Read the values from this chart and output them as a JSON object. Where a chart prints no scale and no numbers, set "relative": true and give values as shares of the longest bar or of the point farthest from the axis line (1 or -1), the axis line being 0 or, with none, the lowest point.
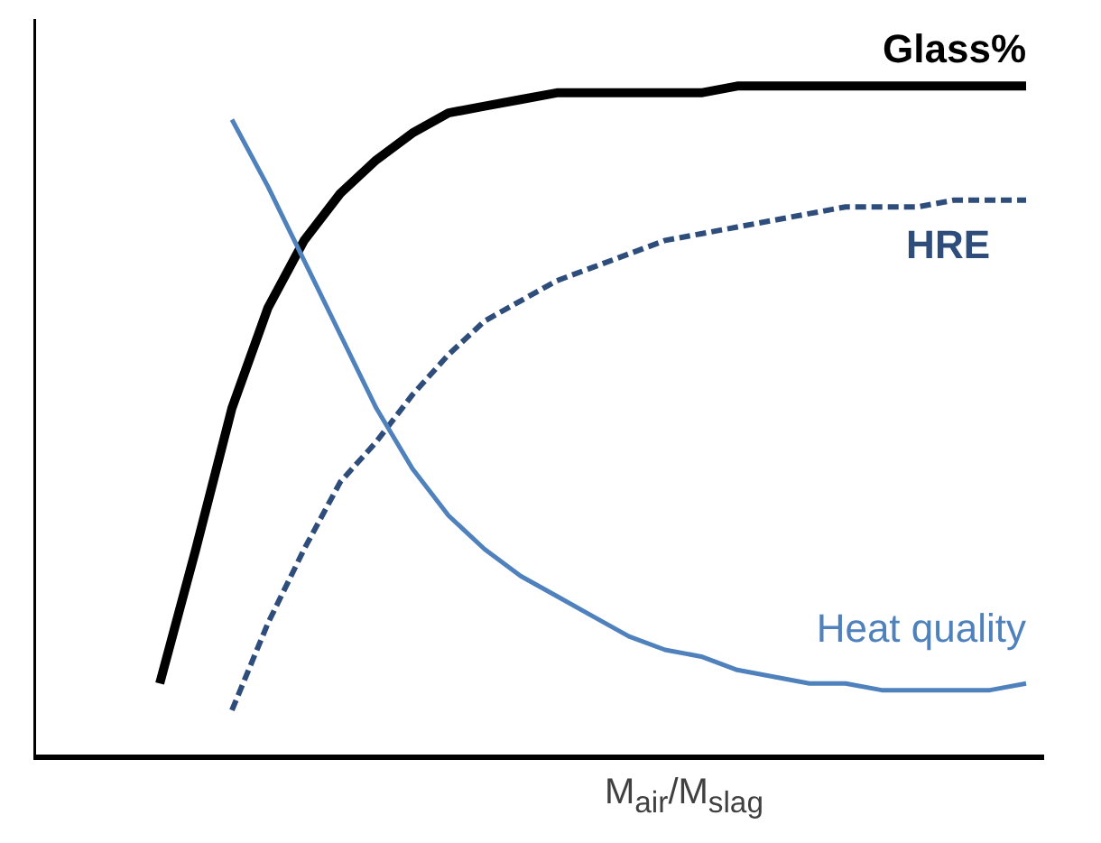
{
  "chart_data": {
    "type": "line",
    "relative": true,
    "xlabel": "M$_{air}$/M$_{slag}$",
    "grid": false,
    "marker": "none",
    "categories": [
      null,
      null,
      null,
      null,
      null,
      null,
      null,
      null,
      null,
      null,
      null,
      null,
      null,
      null,
      null,
      null,
      null,
      null,
      null,
      null,
      null,
      null,
      null,
      null,
      null
    ],
    "series": [
      {
        "name": "Glass%",
        "color": "#000000",
        "line_style": "solid",
        "values": [
          0.11,
          0.31,
          0.52,
          0.67,
          0.77,
          0.84,
          0.89,
          0.93,
          0.96,
          0.97,
          0.98,
          0.99,
          0.99,
          0.99,
          0.99,
          0.99,
          1.0,
          1.0,
          1.0,
          1.0,
          1.0,
          1.0,
          1.0,
          1.0,
          1.0
        ]
      },
      {
        "name": "HRE",
        "color": "#2e4d7b",
        "line_style": "dashed",
        "values": [
          null,
          null,
          0.07,
          0.2,
          0.31,
          0.41,
          0.47,
          0.54,
          0.6,
          0.65,
          0.68,
          0.71,
          0.73,
          0.75,
          0.77,
          0.78,
          0.79,
          0.8,
          0.81,
          0.82,
          0.82,
          0.82,
          0.83,
          0.83,
          0.83
        ]
      },
      {
        "name": "Heat quality",
        "color": "#4f81bd",
        "line_style": "solid",
        "values": [
          null,
          null,
          0.95,
          0.85,
          0.74,
          0.63,
          0.52,
          0.43,
          0.36,
          0.31,
          0.27,
          0.24,
          0.21,
          0.18,
          0.16,
          0.15,
          0.13,
          0.12,
          0.11,
          0.11,
          0.1,
          0.1,
          0.1,
          0.1,
          0.11
        ]
      }
    ]
  }
}
